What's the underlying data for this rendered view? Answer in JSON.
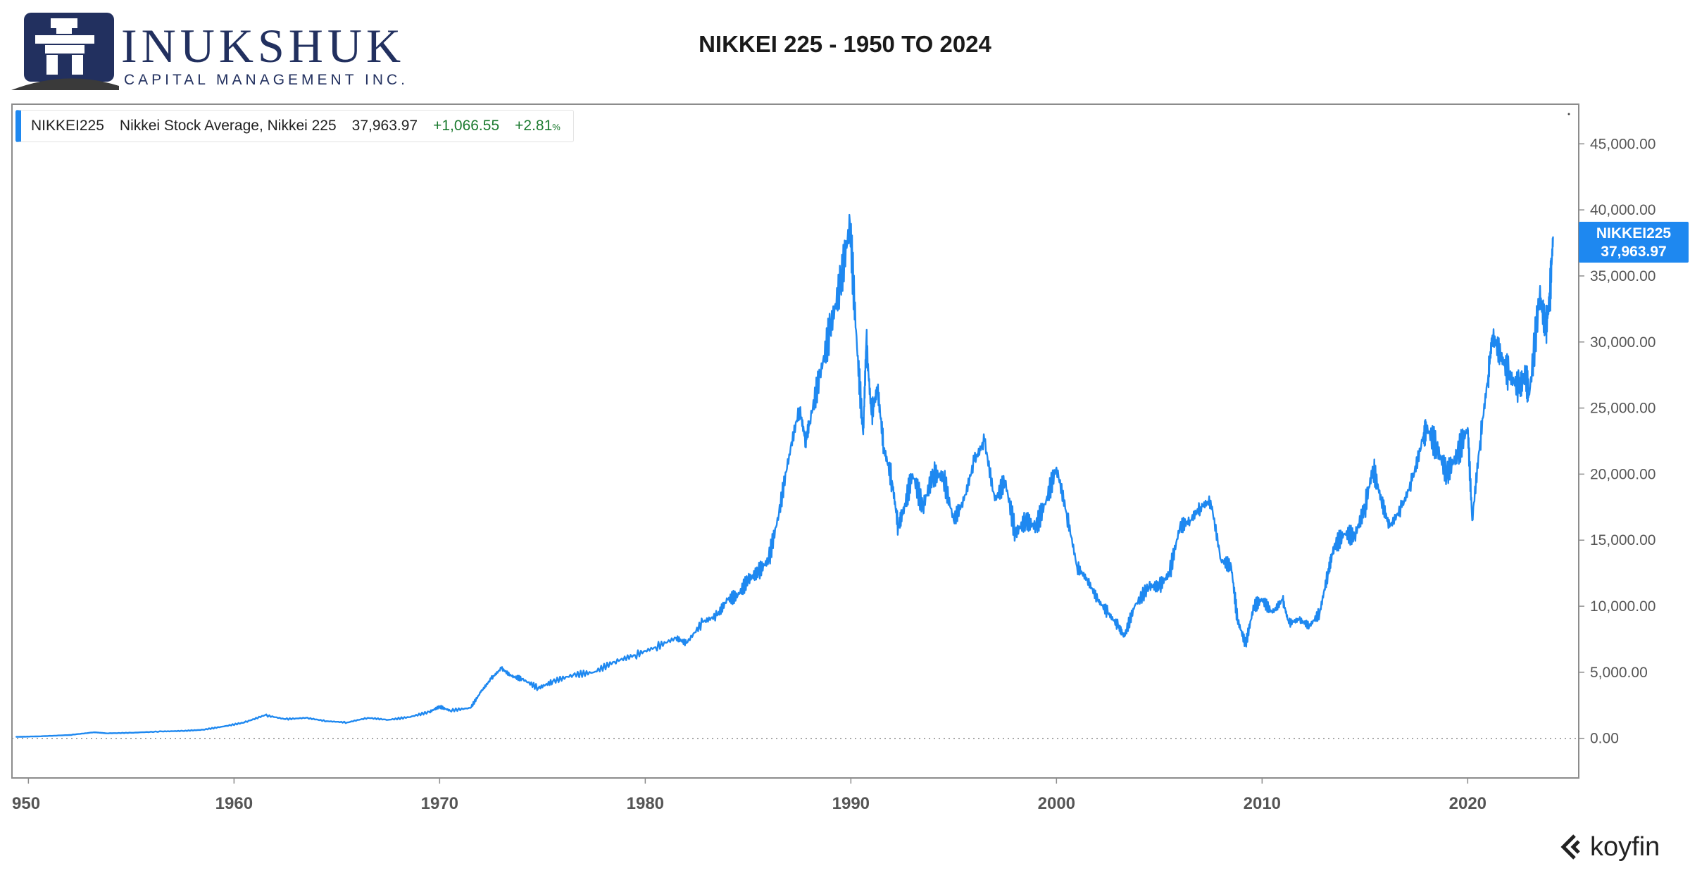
{
  "logo": {
    "icon": "inukshuk-stone-figure-icon",
    "name": "INUKSHUK",
    "tagline": "CAPITAL MANAGEMENT INC.",
    "color": "#22305f"
  },
  "legend": {
    "ticker": "NIKKEI225",
    "name": "Nikkei Stock Average, Nikkei 225",
    "last": "37,963.97",
    "change": "+1,066.55",
    "change_pct": "+2.81",
    "pct_suffix": "%"
  },
  "price_tag": {
    "ticker": "NIKKEI225",
    "value": "37,963.97"
  },
  "watermark": {
    "icon": "koyfin-chevron-icon",
    "text": "koyfin"
  },
  "chart_data": {
    "type": "line",
    "title": "NIKKEI 225 - 1950 TO 2024",
    "xlabel": "",
    "ylabel": "",
    "xlim": [
      1949.2,
      2025.4
    ],
    "ylim": [
      -3000,
      48000
    ],
    "y_axis_position": "right",
    "x_ticks": [
      "950",
      "1960",
      "1970",
      "1980",
      "1990",
      "2000",
      "2010",
      "2020"
    ],
    "y_ticks": [
      "0.00",
      "5,000.00",
      "10,000.00",
      "15,000.00",
      "20,000.00",
      "25,000.00",
      "30,000.00",
      "35,000.00",
      "40,000.00",
      "45,000.00"
    ],
    "grid": false,
    "zero_line": "dotted",
    "legend": "top-left",
    "colors": {
      "series": "#1e88f0",
      "positive": "#1a7a2e"
    },
    "series": [
      {
        "name": "NIKKEI225",
        "x": [
          1949.4,
          1950.5,
          1952.0,
          1953.2,
          1953.8,
          1955.0,
          1956.5,
          1957.5,
          1958.5,
          1959.5,
          1960.5,
          1961.5,
          1962.5,
          1963.5,
          1964.5,
          1965.5,
          1966.5,
          1967.5,
          1968.5,
          1969.5,
          1970.0,
          1970.5,
          1971.5,
          1972.0,
          1972.5,
          1973.0,
          1973.5,
          1974.0,
          1974.8,
          1975.5,
          1976.5,
          1977.5,
          1978.5,
          1979.5,
          1980.5,
          1981.5,
          1982.0,
          1982.8,
          1983.5,
          1984.0,
          1984.5,
          1985.0,
          1985.5,
          1986.0,
          1986.5,
          1987.0,
          1987.5,
          1987.8,
          1988.0,
          1988.5,
          1989.0,
          1989.5,
          1989.96,
          1990.3,
          1990.6,
          1990.75,
          1991.0,
          1991.3,
          1991.6,
          1992.0,
          1992.3,
          1992.6,
          1993.0,
          1993.5,
          1994.0,
          1994.5,
          1995.0,
          1995.5,
          1996.0,
          1996.5,
          1997.0,
          1997.5,
          1998.0,
          1998.5,
          1999.0,
          1999.5,
          2000.0,
          2000.5,
          2001.0,
          2001.5,
          2002.0,
          2002.5,
          2003.0,
          2003.3,
          2003.8,
          2004.5,
          2005.0,
          2005.5,
          2006.0,
          2006.5,
          2007.0,
          2007.5,
          2008.0,
          2008.5,
          2008.8,
          2009.2,
          2009.6,
          2010.0,
          2010.5,
          2011.0,
          2011.3,
          2011.8,
          2012.3,
          2012.8,
          2013.2,
          2013.5,
          2014.0,
          2014.5,
          2015.0,
          2015.4,
          2015.8,
          2016.2,
          2016.8,
          2017.3,
          2017.8,
          2018.0,
          2018.5,
          2018.98,
          2019.5,
          2020.0,
          2020.22,
          2020.6,
          2021.0,
          2021.2,
          2021.6,
          2022.0,
          2022.5,
          2022.8,
          2023.0,
          2023.5,
          2023.8,
          2024.0,
          2024.15
        ],
        "values": [
          110,
          150,
          250,
          460,
          380,
          420,
          520,
          560,
          650,
          900,
          1200,
          1750,
          1450,
          1550,
          1300,
          1200,
          1550,
          1400,
          1600,
          2000,
          2400,
          2100,
          2300,
          3500,
          4500,
          5300,
          4700,
          4500,
          3800,
          4300,
          4800,
          5000,
          5800,
          6300,
          6900,
          7600,
          7200,
          8800,
          9300,
          10500,
          10800,
          12000,
          12600,
          13500,
          17000,
          21500,
          25000,
          22500,
          24000,
          27500,
          31000,
          34500,
          38915,
          29500,
          23000,
          30000,
          24500,
          26500,
          22000,
          19500,
          16000,
          17500,
          20000,
          17500,
          20000,
          19800,
          16500,
          18000,
          21000,
          22500,
          18000,
          19500,
          15500,
          16500,
          16000,
          18000,
          20500,
          17000,
          13000,
          12000,
          10500,
          9500,
          8500,
          7700,
          10000,
          11500,
          11500,
          12500,
          16000,
          16500,
          17500,
          18000,
          13500,
          13000,
          9000,
          7100,
          10000,
          10500,
          9500,
          10500,
          8700,
          9000,
          8500,
          9500,
          12500,
          14500,
          15500,
          15300,
          17500,
          20500,
          18000,
          16000,
          17500,
          19500,
          22500,
          23500,
          22000,
          20000,
          21500,
          23500,
          16500,
          22500,
          27500,
          30500,
          29000,
          27500,
          26500,
          27500,
          26000,
          33500,
          31000,
          33500,
          37963.97
        ]
      }
    ]
  }
}
